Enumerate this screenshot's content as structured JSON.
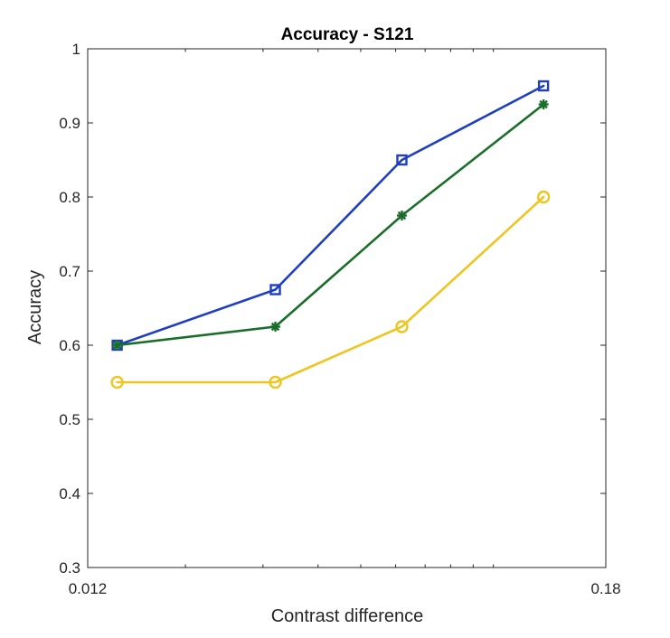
{
  "chart_data": {
    "type": "line",
    "title": "Accuracy - S121",
    "xlabel": "Contrast difference",
    "ylabel": "Accuracy",
    "xscale": "log",
    "xlim": [
      0.012,
      0.18
    ],
    "ylim": [
      0.3,
      1
    ],
    "x_tick_labels": [
      "0.012",
      "0.18"
    ],
    "y_tick_labels": [
      "0.3",
      "0.4",
      "0.5",
      "0.6",
      "0.7",
      "0.8",
      "0.9",
      "1"
    ],
    "x_minor_ticks": [
      0.02,
      0.03,
      0.04,
      0.05,
      0.06,
      0.07,
      0.08,
      0.09,
      0.1
    ],
    "grid": false,
    "x": [
      0.014,
      0.032,
      0.062,
      0.13
    ],
    "series": [
      {
        "values": [
          0.6,
          0.675,
          0.85,
          0.95
        ],
        "color": "#1f3fbf",
        "marker": "square"
      },
      {
        "values": [
          0.6,
          0.625,
          0.775,
          0.925
        ],
        "color": "#1a6e2a",
        "marker": "asterisk"
      },
      {
        "values": [
          0.55,
          0.55,
          0.625,
          0.8
        ],
        "color": "#edc623",
        "marker": "circle"
      }
    ]
  }
}
